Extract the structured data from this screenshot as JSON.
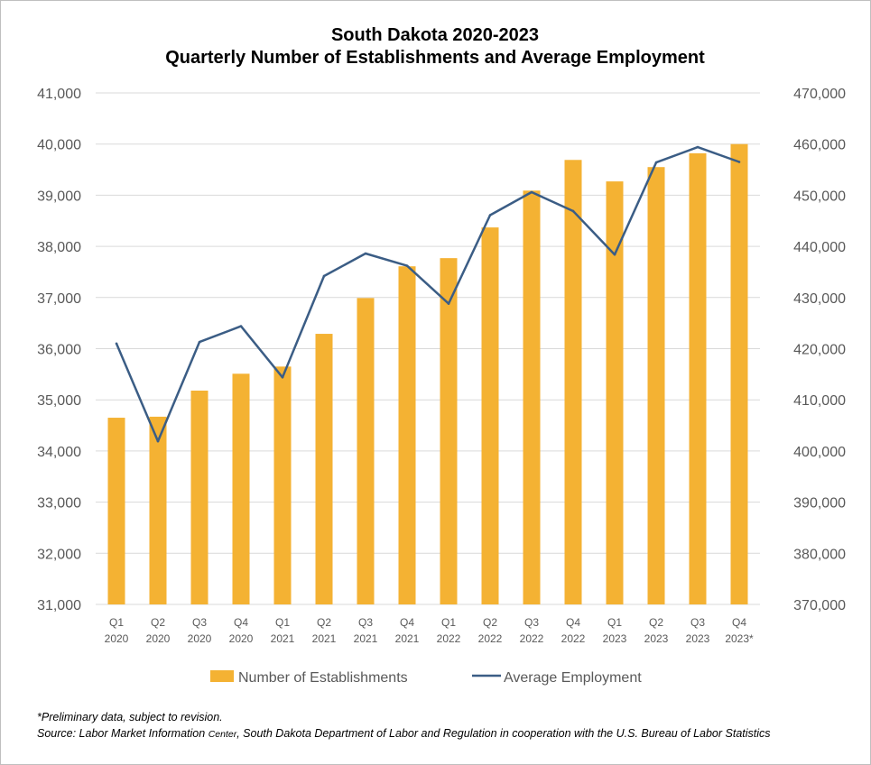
{
  "chart_data": {
    "type": "bar",
    "title": [
      "South Dakota 2020-2023",
      "Quarterly Number of Establishments and Average Employment"
    ],
    "categories": [
      [
        "Q1",
        "2020"
      ],
      [
        "Q2",
        "2020"
      ],
      [
        "Q3",
        "2020"
      ],
      [
        "Q4",
        "2020"
      ],
      [
        "Q1",
        "2021"
      ],
      [
        "Q2",
        "2021"
      ],
      [
        "Q3",
        "2021"
      ],
      [
        "Q4",
        "2021"
      ],
      [
        "Q1",
        "2022"
      ],
      [
        "Q2",
        "2022"
      ],
      [
        "Q3",
        "2022"
      ],
      [
        "Q4",
        "2022"
      ],
      [
        "Q1",
        "2023"
      ],
      [
        "Q2",
        "2023"
      ],
      [
        "Q3",
        "2023"
      ],
      [
        "Q4",
        "2023*"
      ]
    ],
    "series": [
      {
        "name": "Number of Establishments",
        "type": "bar",
        "axis": "left",
        "color": "#F4B233",
        "values": [
          34650,
          34670,
          35180,
          35510,
          35650,
          36290,
          36990,
          37610,
          37770,
          38370,
          39090,
          39690,
          39270,
          39550,
          39820,
          40000
        ]
      },
      {
        "name": "Average Employment",
        "type": "line",
        "axis": "right",
        "color": "#3B5D85",
        "values": [
          421000,
          401900,
          421300,
          424400,
          414400,
          434200,
          438600,
          436200,
          428800,
          446100,
          450600,
          446900,
          438400,
          456400,
          459400,
          456500
        ]
      }
    ],
    "y_left": {
      "min": 31000,
      "max": 41000,
      "step": 1000,
      "tick_labels": [
        "31,000",
        "32,000",
        "33,000",
        "34,000",
        "35,000",
        "36,000",
        "37,000",
        "38,000",
        "39,000",
        "40,000",
        "41,000"
      ]
    },
    "y_right": {
      "min": 370000,
      "max": 470000,
      "step": 10000,
      "tick_labels": [
        "370,000",
        "380,000",
        "390,000",
        "400,000",
        "410,000",
        "420,000",
        "430,000",
        "440,000",
        "450,000",
        "460,000",
        "470,000"
      ]
    },
    "grid": true,
    "legend_position": "bottom"
  },
  "notes": {
    "preliminary": "*Preliminary data, subject to revision.",
    "source_prefix": "Source: Labor Market Information ",
    "source_center": "Center",
    "source_suffix": ", South Dakota Department of Labor and Regulation in cooperation with the U.S. Bureau of Labor Statistics"
  },
  "colors": {
    "grid": "#d9d9d9",
    "axis_text": "#595959",
    "border": "#bfbfbf"
  }
}
